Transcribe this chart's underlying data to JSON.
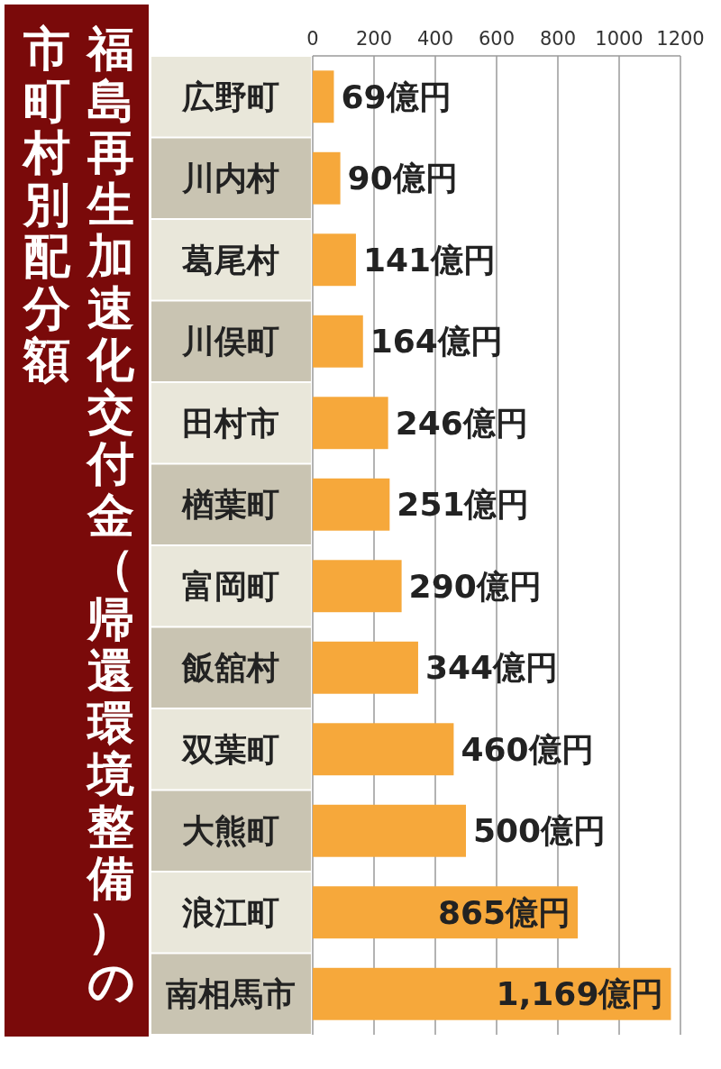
{
  "chart_data": {
    "type": "bar",
    "orientation": "horizontal",
    "title": "福島再生加速化交付金（帰還環境整備）の",
    "subtitle": "市町村別配分額",
    "categories": [
      "広野町",
      "川内村",
      "葛尾村",
      "川俣町",
      "田村市",
      "楢葉町",
      "富岡町",
      "飯舘村",
      "双葉町",
      "大熊町",
      "浪江町",
      "南相馬市"
    ],
    "values": [
      69,
      90,
      141,
      164,
      246,
      251,
      290,
      344,
      460,
      500,
      865,
      1169
    ],
    "value_labels": [
      "69億円",
      "90億円",
      "141億円",
      "164億円",
      "246億円",
      "251億円",
      "290億円",
      "344億円",
      "460億円",
      "500億円",
      "865億円",
      "1,169億円"
    ],
    "color": "#f6a83b",
    "xlim": [
      0,
      1200
    ],
    "xticks": [
      0,
      200,
      400,
      600,
      800,
      1000,
      1200
    ],
    "grid": "x"
  }
}
